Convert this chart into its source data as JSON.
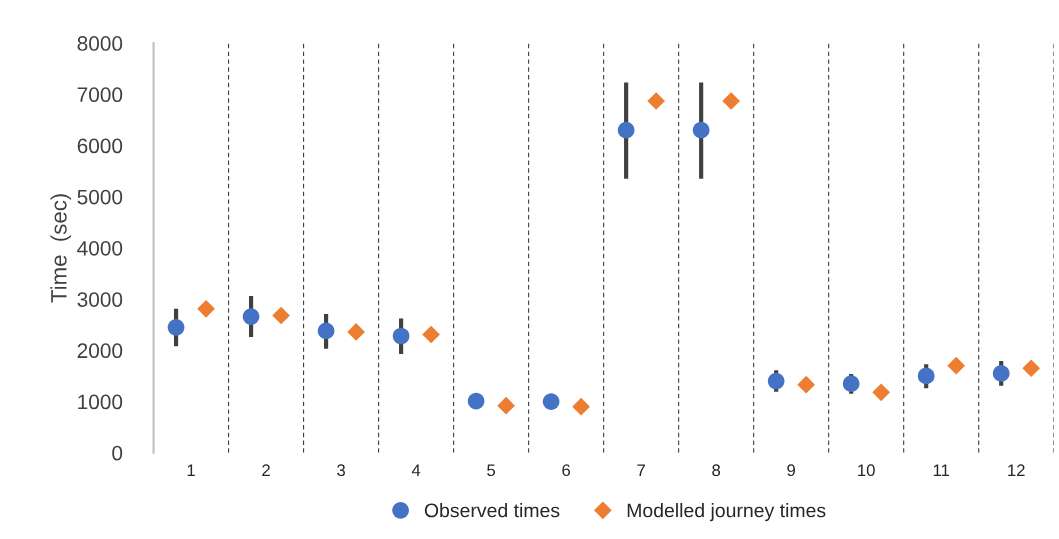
{
  "chart_data": {
    "type": "scatter",
    "ylabel": "Time  (sec)",
    "categories": [
      "1",
      "2",
      "3",
      "4",
      "5",
      "6",
      "7",
      "8",
      "9",
      "10",
      "11",
      "12"
    ],
    "series": [
      {
        "name": "Observed times",
        "color": "#4472c4",
        "marker": "circle",
        "values": [
          2450,
          2660,
          2380,
          2280,
          1010,
          1000,
          6300,
          6300,
          1400,
          1350,
          1500,
          1550
        ],
        "errors": [
          [
            2080,
            2810
          ],
          [
            2260,
            3060
          ],
          [
            2030,
            2710
          ],
          [
            1930,
            2620
          ],
          null,
          null,
          [
            5350,
            7230
          ],
          [
            5350,
            7230
          ],
          [
            1190,
            1610
          ],
          [
            1150,
            1540
          ],
          [
            1260,
            1730
          ],
          [
            1310,
            1790
          ]
        ]
      },
      {
        "name": "Modelled journey times",
        "color": "#ed7d31",
        "marker": "diamond",
        "values": [
          2810,
          2680,
          2360,
          2310,
          920,
          900,
          6870,
          6870,
          1330,
          1180,
          1700,
          1650
        ]
      }
    ],
    "ylim": [
      0,
      8000
    ],
    "yticks": [
      0,
      1000,
      2000,
      3000,
      4000,
      5000,
      6000,
      7000,
      8000
    ],
    "grid": "x",
    "legend": "bottom"
  }
}
